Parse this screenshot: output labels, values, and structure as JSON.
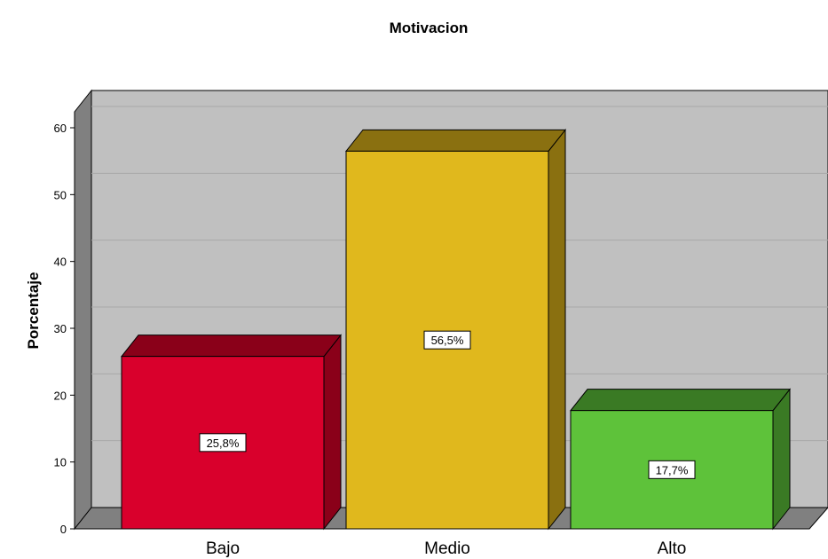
{
  "chart_data": {
    "type": "bar",
    "title": "Motivacion",
    "xlabel": "",
    "ylabel": "Porcentaje",
    "categories": [
      "Bajo",
      "Medio",
      "Alto"
    ],
    "values": [
      25.8,
      56.5,
      17.7
    ],
    "data_labels": [
      "25,8%",
      "56,5%",
      "17,7%"
    ],
    "ylim": [
      0,
      60
    ],
    "yticks": [
      "0",
      "10",
      "20",
      "30",
      "40",
      "50",
      "60"
    ],
    "grid": true,
    "style": "3d",
    "colors": {
      "bars": [
        "#d9002c",
        "#e0b81d",
        "#5ec23a"
      ],
      "bar_tops": [
        "#8a0019",
        "#8a7010",
        "#3a7a24"
      ],
      "wall": "#c0c0c0",
      "wall_side": "#808080",
      "floor": "#808080",
      "gridline": "#a8a8a8"
    }
  }
}
